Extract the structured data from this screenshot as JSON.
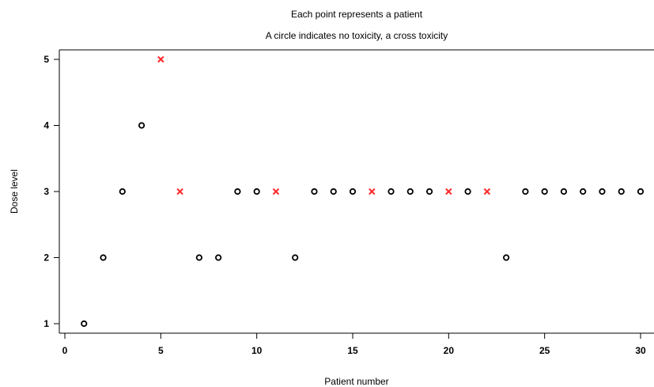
{
  "chart_data": {
    "type": "scatter",
    "title": "Each point represents a patient",
    "subtitle": "A circle indicates no toxicity, a cross toxicity",
    "xlabel": "Patient number",
    "ylabel": "Dose level",
    "xlim": [
      0,
      30
    ],
    "ylim": [
      1,
      5
    ],
    "xticks": [
      0,
      5,
      10,
      15,
      20,
      25,
      30
    ],
    "yticks": [
      1,
      2,
      3,
      4,
      5
    ],
    "grid": false,
    "points": [
      {
        "x": 1,
        "y": 1,
        "toxicity": false
      },
      {
        "x": 2,
        "y": 2,
        "toxicity": false
      },
      {
        "x": 3,
        "y": 3,
        "toxicity": false
      },
      {
        "x": 4,
        "y": 4,
        "toxicity": false
      },
      {
        "x": 5,
        "y": 5,
        "toxicity": true
      },
      {
        "x": 6,
        "y": 3,
        "toxicity": true
      },
      {
        "x": 7,
        "y": 2,
        "toxicity": false
      },
      {
        "x": 8,
        "y": 2,
        "toxicity": false
      },
      {
        "x": 9,
        "y": 3,
        "toxicity": false
      },
      {
        "x": 10,
        "y": 3,
        "toxicity": false
      },
      {
        "x": 11,
        "y": 3,
        "toxicity": true
      },
      {
        "x": 12,
        "y": 2,
        "toxicity": false
      },
      {
        "x": 13,
        "y": 3,
        "toxicity": false
      },
      {
        "x": 14,
        "y": 3,
        "toxicity": false
      },
      {
        "x": 15,
        "y": 3,
        "toxicity": false
      },
      {
        "x": 16,
        "y": 3,
        "toxicity": true
      },
      {
        "x": 17,
        "y": 3,
        "toxicity": false
      },
      {
        "x": 18,
        "y": 3,
        "toxicity": false
      },
      {
        "x": 19,
        "y": 3,
        "toxicity": false
      },
      {
        "x": 20,
        "y": 3,
        "toxicity": true
      },
      {
        "x": 21,
        "y": 3,
        "toxicity": false
      },
      {
        "x": 22,
        "y": 3,
        "toxicity": true
      },
      {
        "x": 23,
        "y": 2,
        "toxicity": false
      },
      {
        "x": 24,
        "y": 3,
        "toxicity": false
      },
      {
        "x": 25,
        "y": 3,
        "toxicity": false
      },
      {
        "x": 26,
        "y": 3,
        "toxicity": false
      },
      {
        "x": 27,
        "y": 3,
        "toxicity": false
      },
      {
        "x": 28,
        "y": 3,
        "toxicity": false
      },
      {
        "x": 29,
        "y": 3,
        "toxicity": false
      },
      {
        "x": 30,
        "y": 3,
        "toxicity": false
      }
    ],
    "colors": {
      "no_toxicity": "#000000",
      "toxicity": "#ff2a2a"
    }
  }
}
